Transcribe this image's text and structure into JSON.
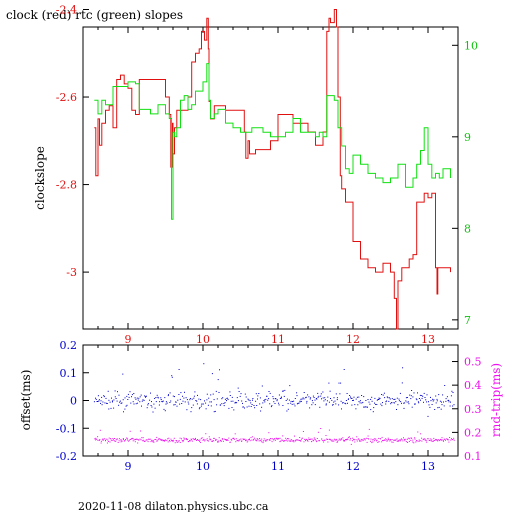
{
  "title": "clock (red) rtc (green) slopes",
  "footer": "2020-11-08  dilaton.physics.ubc.ca",
  "colors": {
    "clock": "#e01010",
    "rtc": "#10e010",
    "offset": "#0000cc",
    "rtt": "#ee10ee",
    "frame": "#000000"
  },
  "chart_data": [
    {
      "type": "line",
      "panel": "top",
      "xlim": [
        8.4,
        13.4
      ],
      "x_ticks": [
        "9",
        "10",
        "11",
        "12",
        "13"
      ],
      "ylim_left": [
        -3.13,
        -2.44
      ],
      "ylabel_left": "clockslope",
      "y_ticks_left": [
        "-2.4",
        "-2.6",
        "-2.8",
        "-3"
      ],
      "ylim_right": [
        6.9,
        10.2
      ],
      "y_ticks_right": [
        "10",
        "9",
        "8",
        "7"
      ],
      "series": [
        {
          "name": "clock",
          "axis": "left",
          "x": [
            8.55,
            8.57,
            8.6,
            8.62,
            8.65,
            8.7,
            8.75,
            8.8,
            8.85,
            8.9,
            8.95,
            9.0,
            9.05,
            9.1,
            9.15,
            9.2,
            9.3,
            9.4,
            9.5,
            9.55,
            9.57,
            9.59,
            9.6,
            9.62,
            9.65,
            9.7,
            9.8,
            9.85,
            9.9,
            9.95,
            9.98,
            10.02,
            10.05,
            10.07,
            10.08,
            10.1,
            10.15,
            10.3,
            10.5,
            10.55,
            10.57,
            10.6,
            10.62,
            10.7,
            10.9,
            11.0,
            11.2,
            11.4,
            11.5,
            11.6,
            11.65,
            11.68,
            11.7,
            11.75,
            11.78,
            11.8,
            11.83,
            11.85,
            11.9,
            12.0,
            12.1,
            12.2,
            12.3,
            12.4,
            12.5,
            12.55,
            12.58,
            12.6,
            12.62,
            12.65,
            12.7,
            12.75,
            12.8,
            12.85,
            12.9,
            12.95,
            13.0,
            13.05,
            13.1,
            13.12,
            13.13,
            13.15,
            13.2,
            13.3
          ],
          "y": [
            -2.67,
            -2.78,
            -2.65,
            -2.71,
            -2.66,
            -2.63,
            -2.62,
            -2.67,
            -2.56,
            -2.55,
            -2.57,
            -2.58,
            -2.63,
            -2.64,
            -2.56,
            -2.56,
            -2.56,
            -2.56,
            -2.6,
            -2.64,
            -2.76,
            -2.66,
            -2.73,
            -2.67,
            -2.63,
            -2.63,
            -2.6,
            -2.52,
            -2.5,
            -2.49,
            -2.45,
            -2.47,
            -2.42,
            -2.49,
            -2.61,
            -2.65,
            -2.62,
            -2.63,
            -2.63,
            -2.68,
            -2.74,
            -2.7,
            -2.73,
            -2.72,
            -2.7,
            -2.64,
            -2.66,
            -2.68,
            -2.71,
            -2.68,
            -2.45,
            -2.42,
            -2.43,
            -2.4,
            -2.44,
            -2.6,
            -2.78,
            -2.81,
            -2.84,
            -2.93,
            -2.97,
            -2.99,
            -3.0,
            -2.98,
            -3.0,
            -3.06,
            -3.13,
            -3.02,
            -3.02,
            -2.99,
            -2.99,
            -2.97,
            -2.96,
            -2.84,
            -2.84,
            -2.82,
            -2.83,
            -2.82,
            -2.99,
            -3.05,
            -2.99,
            -2.99,
            -2.99,
            -3.0
          ]
        },
        {
          "name": "rtc",
          "axis": "right",
          "x": [
            8.55,
            8.6,
            8.65,
            8.7,
            8.8,
            8.9,
            9.0,
            9.1,
            9.15,
            9.2,
            9.3,
            9.4,
            9.5,
            9.55,
            9.58,
            9.6,
            9.62,
            9.65,
            9.7,
            9.75,
            9.8,
            9.85,
            9.9,
            9.95,
            10.0,
            10.05,
            10.08,
            10.1,
            10.15,
            10.2,
            10.3,
            10.4,
            10.5,
            10.6,
            10.65,
            10.7,
            10.8,
            10.9,
            11.0,
            11.1,
            11.2,
            11.3,
            11.4,
            11.5,
            11.55,
            11.6,
            11.65,
            11.7,
            11.75,
            11.8,
            11.85,
            11.9,
            11.95,
            12.0,
            12.1,
            12.2,
            12.3,
            12.4,
            12.5,
            12.6,
            12.7,
            12.8,
            12.85,
            12.9,
            12.95,
            13.0,
            13.05,
            13.1,
            13.15,
            13.2,
            13.3
          ],
          "y": [
            9.4,
            9.25,
            9.4,
            9.35,
            9.55,
            9.55,
            9.6,
            9.58,
            9.3,
            9.3,
            9.25,
            9.35,
            9.25,
            9.2,
            8.1,
            9.05,
            9.0,
            9.1,
            9.4,
            9.45,
            9.3,
            9.35,
            9.5,
            9.5,
            9.6,
            9.8,
            9.4,
            9.2,
            9.25,
            9.3,
            9.15,
            9.1,
            9.05,
            9.05,
            9.1,
            9.1,
            9.05,
            9.0,
            9.0,
            9.05,
            9.2,
            9.05,
            9.05,
            9.0,
            9.05,
            9.0,
            9.45,
            9.45,
            9.4,
            9.1,
            8.9,
            8.65,
            8.6,
            8.8,
            8.7,
            8.6,
            8.55,
            8.5,
            8.55,
            8.7,
            8.45,
            8.55,
            8.7,
            8.85,
            9.1,
            8.7,
            8.55,
            8.6,
            8.55,
            8.65,
            8.55
          ]
        }
      ]
    },
    {
      "type": "scatter",
      "panel": "bottom",
      "xlim": [
        8.4,
        13.4
      ],
      "x_ticks": [
        "9",
        "10",
        "11",
        "12",
        "13"
      ],
      "ylim_left": [
        -0.2,
        0.2
      ],
      "ylabel_left": "offset(ms)",
      "y_ticks_left": [
        "0.2",
        "0.1",
        "0",
        "-0.1",
        "-0.2"
      ],
      "ylim_right": [
        0.1,
        0.57
      ],
      "ylabel_right": "rnd-trip(ms)",
      "y_ticks_right": [
        "0.5",
        "0.4",
        "0.3",
        "0.2",
        "0.1"
      ],
      "series": [
        {
          "name": "offset",
          "axis": "left",
          "center": 0.0,
          "spread": 0.03
        },
        {
          "name": "rtt",
          "axis": "right",
          "center": 0.17,
          "spread": 0.01
        }
      ]
    }
  ]
}
